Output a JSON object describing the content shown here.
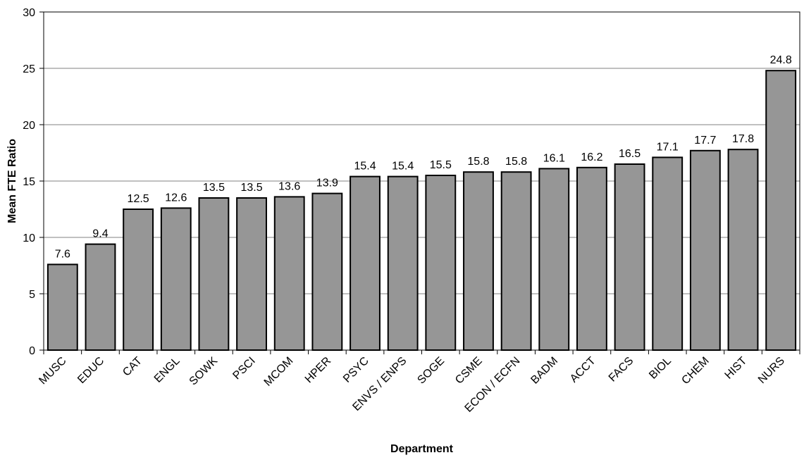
{
  "chart_data": {
    "type": "bar",
    "title": "",
    "xlabel": "Department",
    "ylabel": "Mean FTE Ratio",
    "ylim": [
      0,
      30
    ],
    "yticks": [
      0,
      5,
      10,
      15,
      20,
      25,
      30
    ],
    "grid": true,
    "legend": "none",
    "bar_color": "#969696",
    "categories": [
      "MUSC",
      "EDUC",
      "CAT",
      "ENGL",
      "SOWK",
      "PSCI",
      "MCOM",
      "HPER",
      "PSYC",
      "ENVS / ENPS",
      "SOGE",
      "CSME",
      "ECON / ECFN",
      "BADM",
      "ACCT",
      "FACS",
      "BIOL",
      "CHEM",
      "HIST",
      "NURS"
    ],
    "values": [
      7.6,
      9.4,
      12.5,
      12.6,
      13.5,
      13.5,
      13.6,
      13.9,
      15.4,
      15.4,
      15.5,
      15.8,
      15.8,
      16.1,
      16.2,
      16.5,
      17.1,
      17.7,
      17.8,
      24.8
    ]
  }
}
